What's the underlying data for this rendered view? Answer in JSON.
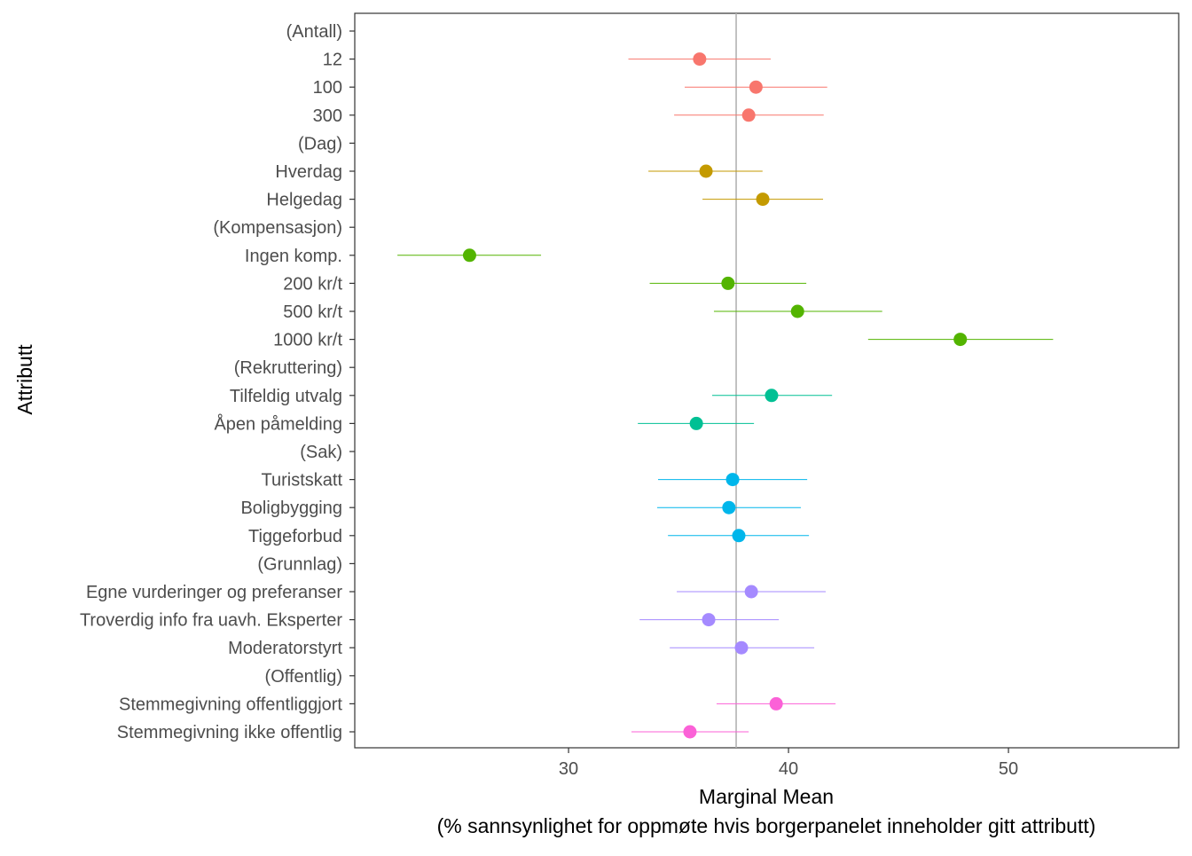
{
  "chart_data": {
    "type": "scatter",
    "subtype": "point-range",
    "title": "",
    "xlabel": "Marginal Mean",
    "xlabel_sub": "(% sannsynlighet for oppmøte hvis borgerpanelet inneholder gitt attributt)",
    "ylabel": "Attributt",
    "xlim": [
      20.28,
      57.74
    ],
    "xticks": [
      30,
      40,
      50
    ],
    "reference_line": 37.62,
    "grid": false,
    "legend": "none",
    "rows": [
      {
        "label": "(Antall)",
        "header": true
      },
      {
        "label": "12",
        "group": "Antall",
        "estimate": 35.96,
        "lower": 32.72,
        "upper": 39.19
      },
      {
        "label": "100",
        "group": "Antall",
        "estimate": 38.52,
        "lower": 35.28,
        "upper": 41.76
      },
      {
        "label": "300",
        "group": "Antall",
        "estimate": 38.19,
        "lower": 34.8,
        "upper": 41.6
      },
      {
        "label": "(Dag)",
        "header": true
      },
      {
        "label": "Hverdag",
        "group": "Dag",
        "estimate": 36.25,
        "lower": 33.63,
        "upper": 38.82
      },
      {
        "label": "Helgedag",
        "group": "Dag",
        "estimate": 38.83,
        "lower": 36.09,
        "upper": 41.57
      },
      {
        "label": "(Kompensasjon)",
        "header": true
      },
      {
        "label": "Ingen komp.",
        "group": "Kompensasjon",
        "estimate": 25.5,
        "lower": 22.22,
        "upper": 28.75
      },
      {
        "label": "200 kr/t",
        "group": "Kompensasjon",
        "estimate": 37.25,
        "lower": 33.69,
        "upper": 40.81
      },
      {
        "label": "500 kr/t",
        "group": "Kompensasjon",
        "estimate": 40.41,
        "lower": 36.61,
        "upper": 44.26
      },
      {
        "label": "1000 kr/t",
        "group": "Kompensasjon",
        "estimate": 47.81,
        "lower": 43.62,
        "upper": 52.03
      },
      {
        "label": "(Rekruttering)",
        "header": true
      },
      {
        "label": "Tilfeldig utvalg",
        "group": "Rekruttering",
        "estimate": 39.23,
        "lower": 36.53,
        "upper": 41.98
      },
      {
        "label": "Åpen påmelding",
        "group": "Rekruttering",
        "estimate": 35.81,
        "lower": 33.15,
        "upper": 38.43
      },
      {
        "label": "(Sak)",
        "header": true
      },
      {
        "label": "Turistskatt",
        "group": "Sak",
        "estimate": 37.46,
        "lower": 34.07,
        "upper": 40.85
      },
      {
        "label": "Boligbygging",
        "group": "Sak",
        "estimate": 37.29,
        "lower": 34.03,
        "upper": 40.56
      },
      {
        "label": "Tiggeforbud",
        "group": "Sak",
        "estimate": 37.74,
        "lower": 34.52,
        "upper": 40.93
      },
      {
        "label": "(Grunnlag)",
        "header": true
      },
      {
        "label": "Egne vurderinger og preferanser",
        "group": "Grunnlag",
        "estimate": 38.31,
        "lower": 34.92,
        "upper": 41.69
      },
      {
        "label": "Troverdig info fra uavh. Eksperter",
        "group": "Grunnlag",
        "estimate": 36.37,
        "lower": 33.23,
        "upper": 39.56
      },
      {
        "label": "Moderatorstyrt",
        "group": "Grunnlag",
        "estimate": 37.86,
        "lower": 34.6,
        "upper": 41.17
      },
      {
        "label": "(Offentlig)",
        "header": true
      },
      {
        "label": "Stemmegivning offentliggjort",
        "group": "Offentlig",
        "estimate": 39.44,
        "lower": 36.73,
        "upper": 42.14
      },
      {
        "label": "Stemmegivning ikke offentlig",
        "group": "Offentlig",
        "estimate": 35.52,
        "lower": 32.86,
        "upper": 38.19
      }
    ],
    "group_colors": {
      "Antall": "#F8766D",
      "Dag": "#C49A00",
      "Kompensasjon": "#53B400",
      "Rekruttering": "#00C094",
      "Sak": "#00B6EB",
      "Grunnlag": "#A58AFF",
      "Offentlig": "#FB61D7"
    },
    "reference_line_color": "#b3b3b3"
  }
}
